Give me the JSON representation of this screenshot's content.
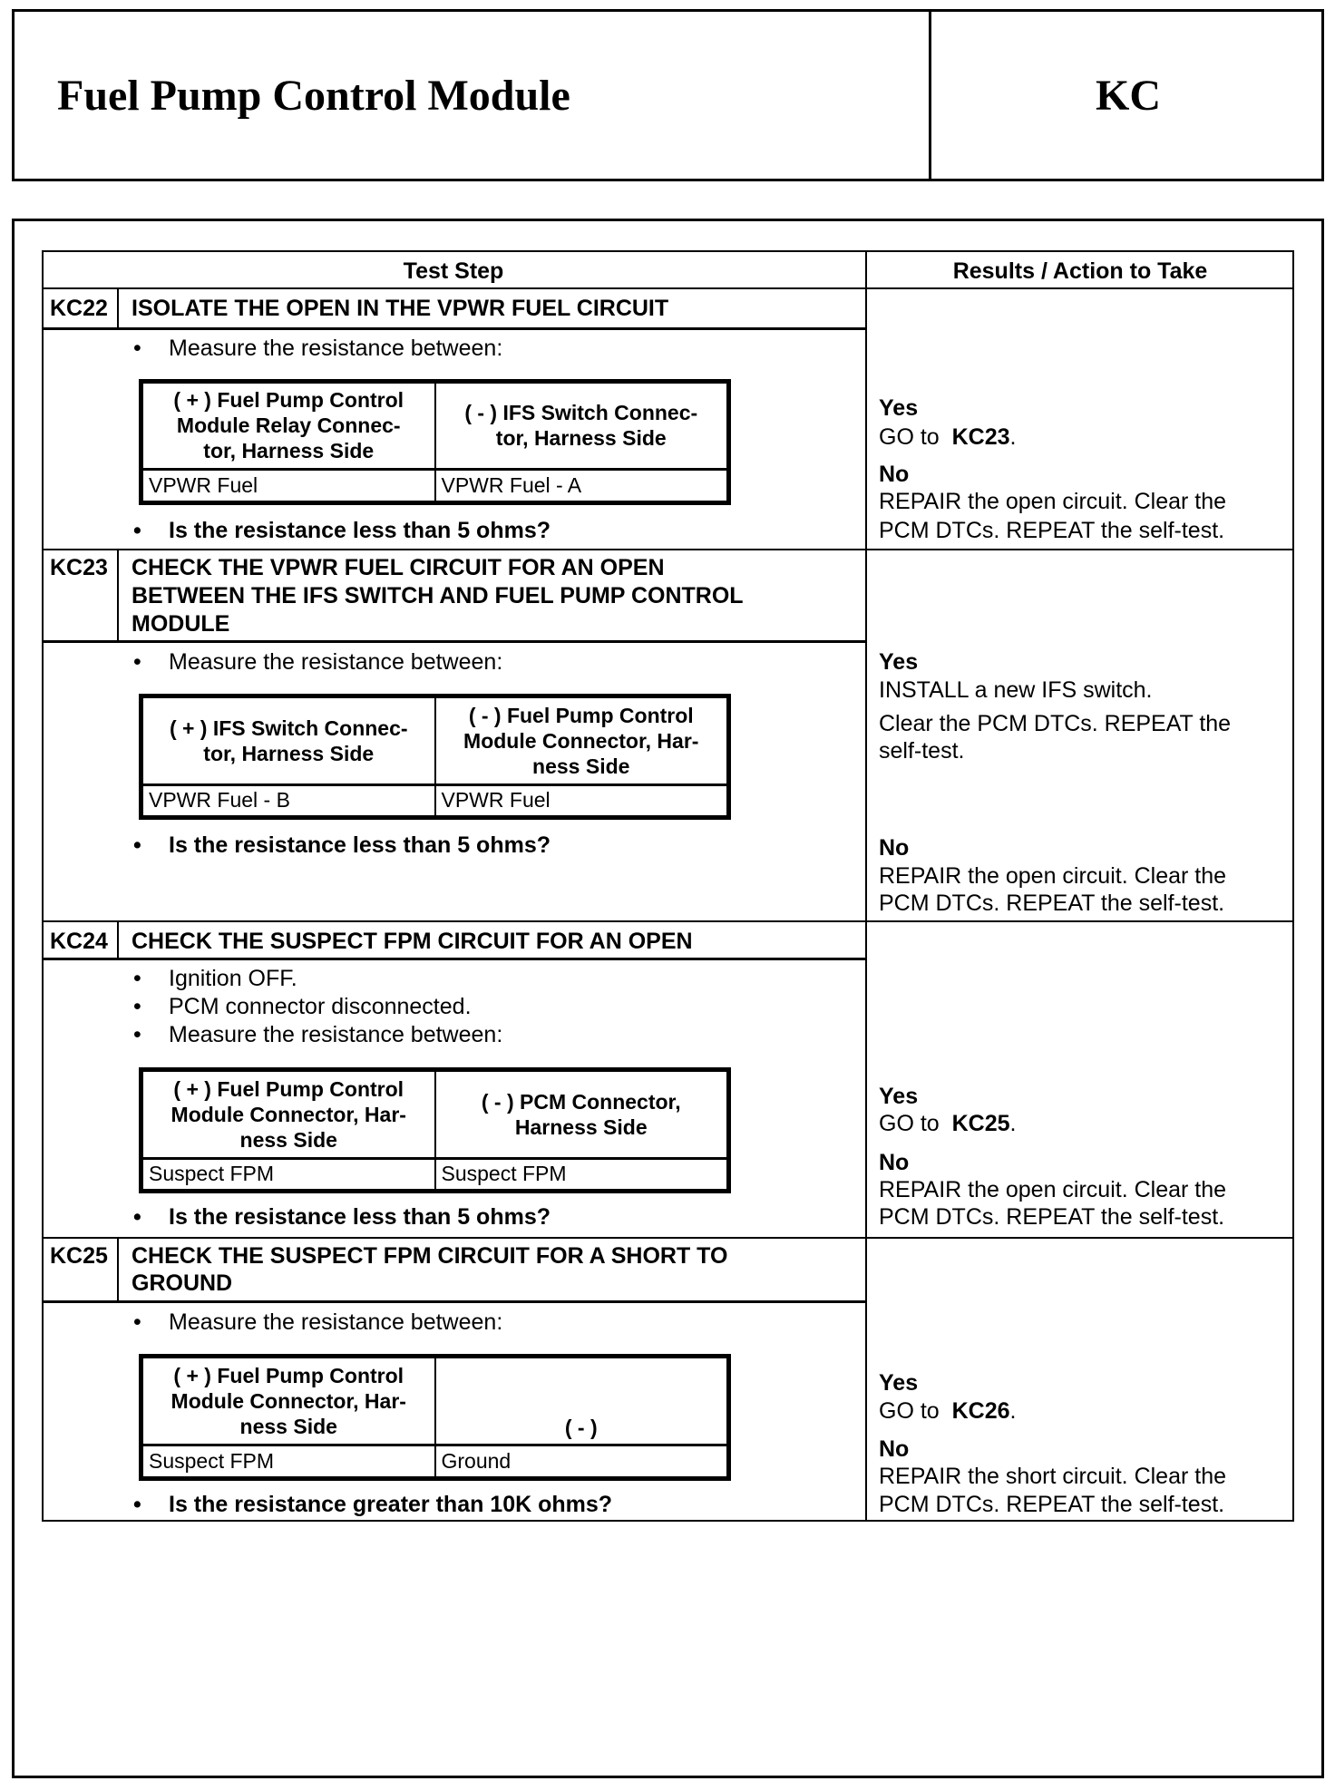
{
  "header": {
    "title": "Fuel Pump Control Module",
    "code": "KC"
  },
  "table": {
    "col_test_step": "Test Step",
    "col_results": "Results / Action to Take"
  },
  "bullet": "•",
  "steps": [
    {
      "id": "KC22",
      "title_lines": [
        "ISOLATE THE OPEN IN THE VPWR FUEL CIRCUIT"
      ],
      "bullets": [
        "Measure the resistance between:"
      ],
      "measure": {
        "plus_header": [
          "( + ) Fuel Pump Control",
          "Module Relay Connec-",
          "tor, Harness Side"
        ],
        "minus_header": [
          "( - ) IFS Switch Connec-",
          "tor, Harness Side"
        ],
        "plus_value": "VPWR Fuel",
        "minus_value": "VPWR Fuel - A"
      },
      "question": "Is the resistance less than 5 ohms?",
      "results": {
        "yes": "Yes",
        "yes_lines": [],
        "yes_goto": "GO to",
        "yes_target": "KC23",
        "yes_suffix": ".",
        "no": "No",
        "no_lines": [
          "REPAIR the open circuit. Clear the",
          "PCM DTCs. REPEAT the self-test."
        ]
      }
    },
    {
      "id": "KC23",
      "title_lines": [
        "CHECK THE VPWR FUEL CIRCUIT FOR AN OPEN",
        "BETWEEN THE IFS SWITCH AND FUEL PUMP CONTROL",
        "MODULE"
      ],
      "bullets": [
        "Measure the resistance between:"
      ],
      "measure": {
        "plus_header": [
          "( + ) IFS Switch Connec-",
          "tor, Harness Side"
        ],
        "minus_header": [
          "( - ) Fuel Pump Control",
          "Module Connector, Har-",
          "ness Side"
        ],
        "plus_value": "VPWR Fuel - B",
        "minus_value": "VPWR Fuel"
      },
      "question": "Is the resistance less than 5 ohms?",
      "results": {
        "yes": "Yes",
        "yes_lines": [
          "INSTALL a new IFS switch.",
          "Clear the PCM DTCs. REPEAT the",
          "self-test."
        ],
        "no": "No",
        "no_lines": [
          "REPAIR the open circuit. Clear the",
          "PCM DTCs. REPEAT the self-test."
        ]
      }
    },
    {
      "id": "KC24",
      "title_lines": [
        "CHECK THE SUSPECT FPM CIRCUIT FOR AN OPEN"
      ],
      "bullets": [
        "Ignition OFF.",
        "PCM connector disconnected.",
        "Measure the resistance between:"
      ],
      "measure": {
        "plus_header": [
          "( + ) Fuel Pump Control",
          "Module Connector, Har-",
          "ness Side"
        ],
        "minus_header": [
          "( - ) PCM Connector,",
          "Harness Side"
        ],
        "plus_value": "Suspect FPM",
        "minus_value": "Suspect FPM"
      },
      "question": "Is the resistance less than 5 ohms?",
      "results": {
        "yes": "Yes",
        "yes_goto": "GO to",
        "yes_target": "KC25",
        "yes_suffix": ".",
        "no": "No",
        "no_lines": [
          "REPAIR the open circuit. Clear the",
          "PCM DTCs. REPEAT the self-test."
        ]
      }
    },
    {
      "id": "KC25",
      "title_lines": [
        "CHECK THE SUSPECT FPM CIRCUIT FOR A SHORT TO",
        "GROUND"
      ],
      "bullets": [
        "Measure the resistance between:"
      ],
      "measure": {
        "plus_header": [
          "( + ) Fuel Pump Control",
          "Module Connector, Har-",
          "ness Side"
        ],
        "minus_header": [
          "( - )"
        ],
        "plus_value": "Suspect FPM",
        "minus_value": "Ground"
      },
      "question": "Is the resistance greater than 10K ohms?",
      "results": {
        "yes": "Yes",
        "yes_goto": "GO to",
        "yes_target": "KC26",
        "yes_suffix": ".",
        "no": "No",
        "no_lines": [
          "REPAIR the short circuit. Clear the",
          "PCM DTCs. REPEAT the self-test."
        ]
      }
    }
  ]
}
